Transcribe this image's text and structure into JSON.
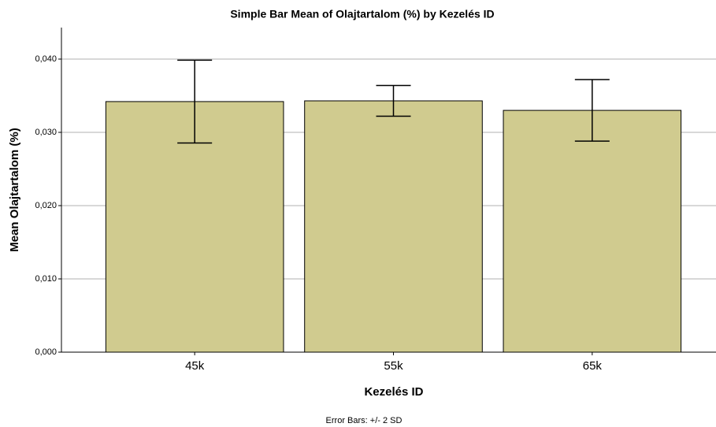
{
  "chart_data": {
    "type": "bar",
    "title": "Simple Bar Mean of Olajtartalom (%) by Kezelés ID",
    "x_label": "Kezelés ID",
    "y_label": "Mean Olajtartalom (%)",
    "note": "Error Bars: +/- 2 SD",
    "categories": [
      "45k",
      "55k",
      "65k"
    ],
    "values": [
      0.0342,
      0.0343,
      0.033
    ],
    "errors": [
      0.00565,
      0.0021,
      0.0042
    ],
    "color": "#d0cb8f",
    "ylim": [
      0,
      0.0443
    ],
    "yticks": [
      {
        "value": 0,
        "label": "0,000"
      },
      {
        "value": 0.01,
        "label": "0,010"
      },
      {
        "value": 0.02,
        "label": "0,020"
      },
      {
        "value": 0.03,
        "label": "0,030"
      },
      {
        "value": 0.04,
        "label": "0,040"
      }
    ],
    "grid": true
  }
}
